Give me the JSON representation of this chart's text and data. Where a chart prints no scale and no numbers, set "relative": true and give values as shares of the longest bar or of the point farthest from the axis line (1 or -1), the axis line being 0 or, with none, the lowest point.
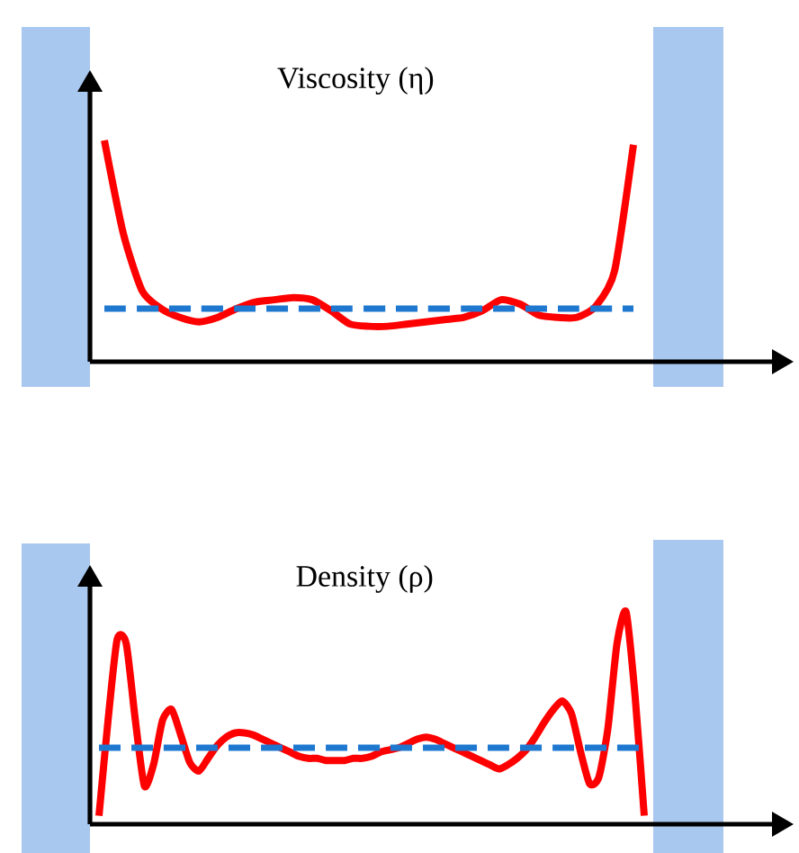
{
  "chart_data": [
    {
      "type": "line",
      "title": "Viscosity (η)",
      "relative": true,
      "categories": [
        null,
        null,
        null,
        null,
        null,
        null,
        null,
        null,
        null,
        null,
        null,
        null,
        null,
        null,
        null,
        null,
        null,
        null,
        null,
        null,
        null,
        null,
        null,
        null,
        null,
        null,
        null,
        null,
        null
      ],
      "series": [
        {
          "color": "#ff0000",
          "values": [
            1.0,
            0.58,
            0.32,
            0.24,
            0.2,
            0.18,
            0.2,
            0.24,
            0.27,
            0.28,
            0.29,
            0.28,
            0.23,
            0.17,
            0.16,
            0.16,
            0.17,
            0.18,
            0.19,
            0.2,
            0.23,
            0.28,
            0.26,
            0.21,
            0.2,
            0.2,
            0.25,
            0.41,
            0.98
          ]
        },
        {
          "color": "#1f78d0",
          "line_style": "dashed",
          "values": [
            0.24,
            0.24,
            0.24,
            0.24,
            0.24,
            0.24,
            0.24,
            0.24,
            0.24,
            0.24,
            0.24,
            0.24,
            0.24,
            0.24,
            0.24,
            0.24,
            0.24,
            0.24,
            0.24,
            0.24,
            0.24,
            0.24,
            0.24,
            0.24,
            0.24,
            0.24,
            0.24,
            0.24,
            0.24
          ]
        }
      ]
    },
    {
      "type": "line",
      "title": "Density (ρ)",
      "relative": true,
      "categories": [
        null,
        null,
        null,
        null,
        null,
        null,
        null,
        null,
        null,
        null,
        null,
        null,
        null,
        null,
        null,
        null,
        null,
        null,
        null,
        null,
        null,
        null,
        null,
        null,
        null,
        null,
        null,
        null,
        null,
        null,
        null,
        null,
        null,
        null,
        null,
        null,
        null,
        null,
        null,
        null,
        null,
        null,
        null,
        null,
        null,
        null,
        null,
        null,
        null,
        null,
        null,
        null,
        null,
        null,
        null,
        null,
        null,
        null,
        null,
        null,
        null
      ],
      "series": [
        {
          "color": "#ff0000",
          "values": [
            0.04,
            0.49,
            0.87,
            0.85,
            0.49,
            0.18,
            0.28,
            0.49,
            0.54,
            0.42,
            0.29,
            0.25,
            0.31,
            0.37,
            0.41,
            0.43,
            0.43,
            0.42,
            0.4,
            0.38,
            0.36,
            0.34,
            0.32,
            0.31,
            0.31,
            0.3,
            0.3,
            0.3,
            0.31,
            0.31,
            0.32,
            0.34,
            0.35,
            0.36,
            0.38,
            0.4,
            0.41,
            0.4,
            0.38,
            0.36,
            0.34,
            0.32,
            0.3,
            0.28,
            0.26,
            0.28,
            0.31,
            0.35,
            0.41,
            0.48,
            0.54,
            0.58,
            0.52,
            0.34,
            0.19,
            0.22,
            0.45,
            0.85,
            1.0,
            0.6,
            0.04
          ]
        },
        {
          "color": "#1f78d0",
          "line_style": "dashed",
          "values": [
            0.36,
            0.36,
            0.36,
            0.36,
            0.36,
            0.36,
            0.36,
            0.36,
            0.36,
            0.36,
            0.36,
            0.36,
            0.36,
            0.36,
            0.36,
            0.36,
            0.36,
            0.36,
            0.36,
            0.36,
            0.36,
            0.36,
            0.36,
            0.36,
            0.36,
            0.36,
            0.36,
            0.36,
            0.36,
            0.36,
            0.36,
            0.36,
            0.36,
            0.36,
            0.36,
            0.36,
            0.36,
            0.36,
            0.36,
            0.36,
            0.36,
            0.36,
            0.36,
            0.36,
            0.36,
            0.36,
            0.36,
            0.36,
            0.36,
            0.36,
            0.36,
            0.36,
            0.36,
            0.36,
            0.36,
            0.36,
            0.36,
            0.36,
            0.36,
            0.36,
            0.36
          ]
        }
      ]
    }
  ]
}
